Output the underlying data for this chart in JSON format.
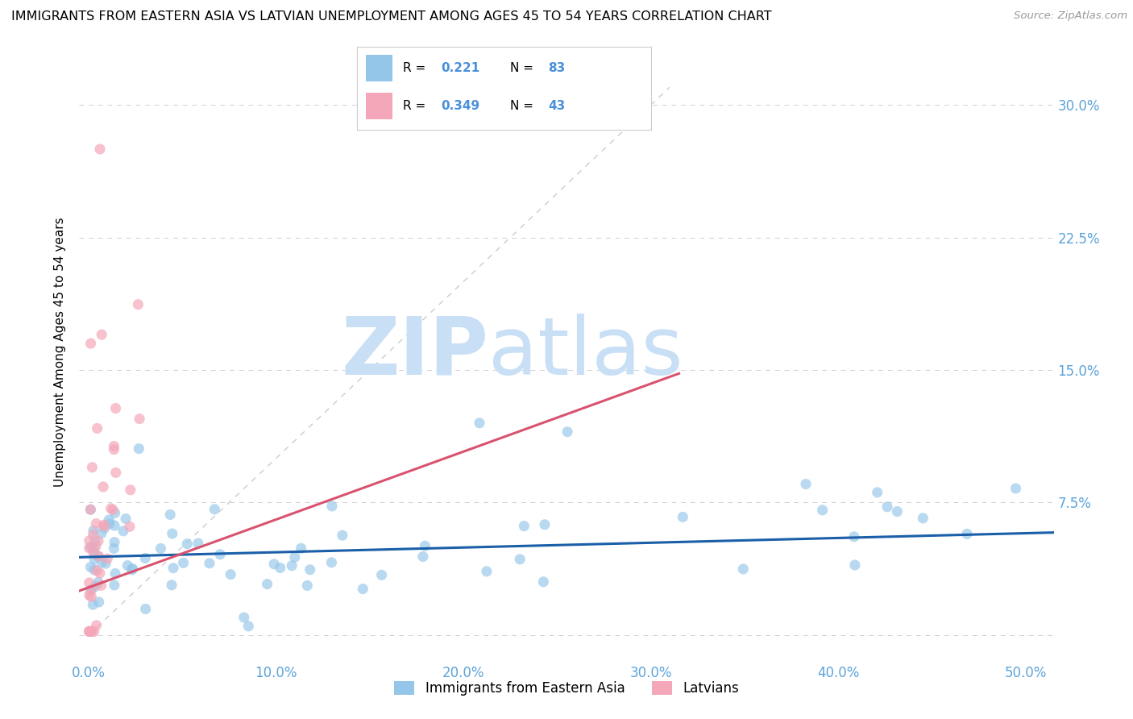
{
  "title": "IMMIGRANTS FROM EASTERN ASIA VS LATVIAN UNEMPLOYMENT AMONG AGES 45 TO 54 YEARS CORRELATION CHART",
  "source": "Source: ZipAtlas.com",
  "ylabel": "Unemployment Among Ages 45 to 54 years",
  "xlim": [
    -0.005,
    0.515
  ],
  "ylim": [
    -0.015,
    0.335
  ],
  "xtick_vals": [
    0.0,
    0.1,
    0.2,
    0.3,
    0.4,
    0.5
  ],
  "xtick_labels": [
    "0.0%",
    "10.0%",
    "20.0%",
    "30.0%",
    "40.0%",
    "50.0%"
  ],
  "ytick_vals": [
    0.0,
    0.075,
    0.15,
    0.225,
    0.3
  ],
  "ytick_labels": [
    "",
    "7.5%",
    "15.0%",
    "22.5%",
    "30.0%"
  ],
  "blue_color": "#93c6e8",
  "pink_color": "#f4a7b9",
  "blue_line_color": "#1a5fa8",
  "pink_line_color": "#d9536f",
  "diag_line_color": "#cccccc",
  "tick_label_color": "#5ba3d9",
  "R_blue": "0.221",
  "N_blue": "83",
  "R_pink": "0.349",
  "N_pink": "43",
  "legend_text_color": "#4a90d9",
  "watermark_zip_color": "#c8dff5",
  "watermark_atlas_color": "#c8dff5",
  "legend_label_blue": "Immigrants from Eastern Asia",
  "legend_label_pink": "Latvians",
  "title_fontsize": 11.5,
  "axis_label_fontsize": 11,
  "tick_fontsize": 12,
  "legend_fontsize": 11
}
